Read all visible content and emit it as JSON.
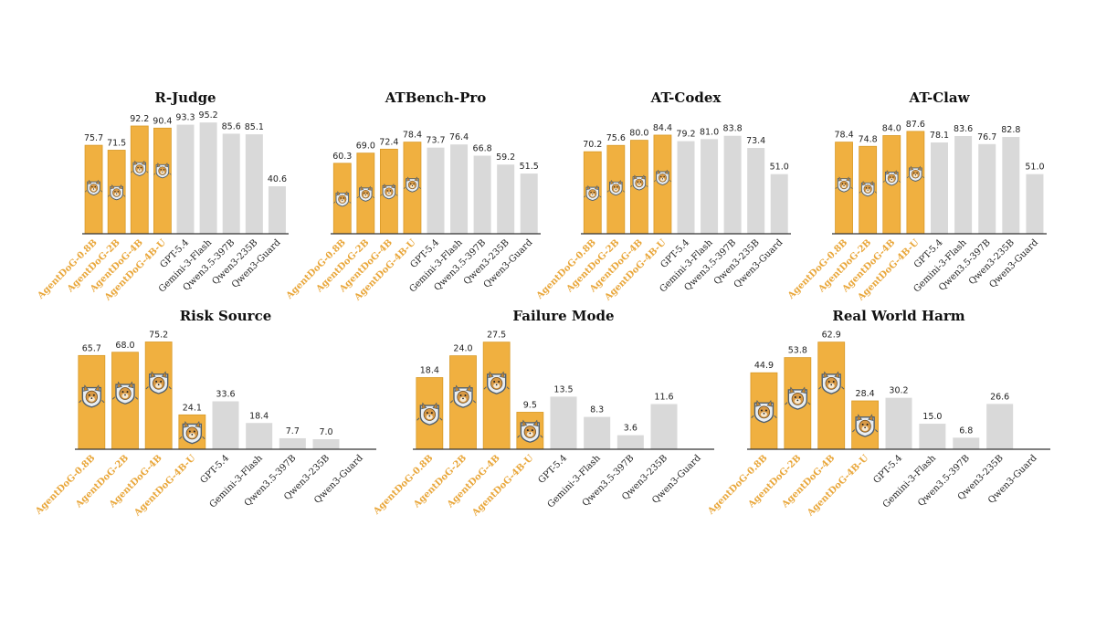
{
  "colors": {
    "ours": "#F0B040",
    "ours_stroke": "#D99A28",
    "ours_label": "#E9A73B",
    "baseline": "#D9D9D9",
    "baseline_label": "#222222",
    "axis": "#333333"
  },
  "chart_data": [
    {
      "type": "bar",
      "title": "R-Judge",
      "categories": [
        "AgentDoG-0.8B",
        "AgentDoG-2B",
        "AgentDoG-4B",
        "AgentDoG-4B-U",
        "GPT-5.4",
        "Gemini-3-Flash",
        "Qwen3.5-397B",
        "Qwen3-235B",
        "Qwen3-Guard"
      ],
      "values": [
        75.7,
        71.5,
        92.2,
        90.4,
        93.3,
        95.2,
        85.6,
        85.1,
        40.6
      ],
      "value_labels": [
        "75.7",
        "71.5",
        "92.2",
        "90.4",
        "93.3",
        "95.2",
        "85.6",
        "85.1",
        "40.6"
      ],
      "highlighted": [
        true,
        true,
        true,
        true,
        false,
        false,
        false,
        false,
        false
      ],
      "ylim": [
        0,
        100
      ]
    },
    {
      "type": "bar",
      "title": "ATBench-Pro",
      "categories": [
        "AgentDoG-0.8B",
        "AgentDoG-2B",
        "AgentDoG-4B",
        "AgentDoG-4B-U",
        "GPT-5.4",
        "Gemini-3-Flash",
        "Qwen3.5-397B",
        "Qwen3-235B",
        "Qwen3-Guard"
      ],
      "values": [
        60.3,
        69.0,
        72.4,
        78.4,
        73.7,
        76.4,
        66.8,
        59.2,
        51.5
      ],
      "value_labels": [
        "60.3",
        "69.0",
        "72.4",
        "78.4",
        "73.7",
        "76.4",
        "66.8",
        "59.2",
        "51.5"
      ],
      "highlighted": [
        true,
        true,
        true,
        true,
        false,
        false,
        false,
        false,
        false
      ],
      "ylim": [
        0,
        100
      ]
    },
    {
      "type": "bar",
      "title": "AT-Codex",
      "categories": [
        "AgentDoG-0.8B",
        "AgentDoG-2B",
        "AgentDoG-4B",
        "AgentDoG-4B-U",
        "GPT-5.4",
        "Gemini-3-Flash",
        "Qwen3.5-397B",
        "Qwen3-235B",
        "Qwen3-Guard"
      ],
      "values": [
        70.2,
        75.6,
        80.0,
        84.4,
        79.2,
        81.0,
        83.8,
        73.4,
        51.0
      ],
      "value_labels": [
        "70.2",
        "75.6",
        "80.0",
        "84.4",
        "79.2",
        "81.0",
        "83.8",
        "73.4",
        "51.0"
      ],
      "highlighted": [
        true,
        true,
        true,
        true,
        false,
        false,
        false,
        false,
        false
      ],
      "ylim": [
        0,
        100
      ]
    },
    {
      "type": "bar",
      "title": "AT-Claw",
      "categories": [
        "AgentDoG-0.8B",
        "AgentDoG-2B",
        "AgentDoG-4B",
        "AgentDoG-4B-U",
        "GPT-5.4",
        "Gemini-3-Flash",
        "Qwen3.5-397B",
        "Qwen3-235B",
        "Qwen3-Guard"
      ],
      "values": [
        78.4,
        74.8,
        84.0,
        87.6,
        78.1,
        83.6,
        76.7,
        82.8,
        51.0
      ],
      "value_labels": [
        "78.4",
        "74.8",
        "84.0",
        "87.6",
        "78.1",
        "83.6",
        "76.7",
        "82.8",
        "51.0"
      ],
      "highlighted": [
        true,
        true,
        true,
        true,
        false,
        false,
        false,
        false,
        false
      ],
      "ylim": [
        0,
        100
      ]
    },
    {
      "type": "bar",
      "title": "Risk Source",
      "categories": [
        "AgentDoG-0.8B",
        "AgentDoG-2B",
        "AgentDoG-4B",
        "AgentDoG-4B-U",
        "GPT-5.4",
        "Gemini-3-Flash",
        "Qwen3.5-397B",
        "Qwen3-235B",
        "Qwen3-Guard"
      ],
      "values": [
        65.7,
        68.0,
        75.2,
        24.1,
        33.6,
        18.4,
        7.7,
        7.0,
        0
      ],
      "value_labels": [
        "65.7",
        "68.0",
        "75.2",
        "24.1",
        "33.6",
        "18.4",
        "7.7",
        "7.0",
        ""
      ],
      "highlighted": [
        true,
        true,
        true,
        true,
        false,
        false,
        false,
        false,
        false
      ],
      "ylim": [
        0,
        80
      ]
    },
    {
      "type": "bar",
      "title": "Failure Mode",
      "categories": [
        "AgentDoG-0.8B",
        "AgentDoG-2B",
        "AgentDoG-4B",
        "AgentDoG-4B-U",
        "GPT-5.4",
        "Gemini-3-Flash",
        "Qwen3.5-397B",
        "Qwen3-235B",
        "Qwen3-Guard"
      ],
      "values": [
        18.4,
        24.0,
        27.5,
        9.5,
        13.5,
        8.3,
        3.6,
        11.6,
        0
      ],
      "value_labels": [
        "18.4",
        "24.0",
        "27.5",
        "9.5",
        "13.5",
        "8.3",
        "3.6",
        "11.6",
        ""
      ],
      "highlighted": [
        true,
        true,
        true,
        true,
        false,
        false,
        false,
        false,
        false
      ],
      "ylim": [
        0,
        29.3
      ]
    },
    {
      "type": "bar",
      "title": "Real World Harm",
      "categories": [
        "AgentDoG-0.8B",
        "AgentDoG-2B",
        "AgentDoG-4B",
        "AgentDoG-4B-U",
        "GPT-5.4",
        "Gemini-3-Flash",
        "Qwen3.5-397B",
        "Qwen3-235B",
        "Qwen3-Guard"
      ],
      "values": [
        44.9,
        53.8,
        62.9,
        28.4,
        30.2,
        15.0,
        6.8,
        26.6,
        0
      ],
      "value_labels": [
        "44.9",
        "53.8",
        "62.9",
        "28.4",
        "30.2",
        "15.0",
        "6.8",
        "26.6",
        ""
      ],
      "highlighted": [
        true,
        true,
        true,
        true,
        false,
        false,
        false,
        false,
        false
      ],
      "ylim": [
        0,
        67
      ]
    }
  ]
}
